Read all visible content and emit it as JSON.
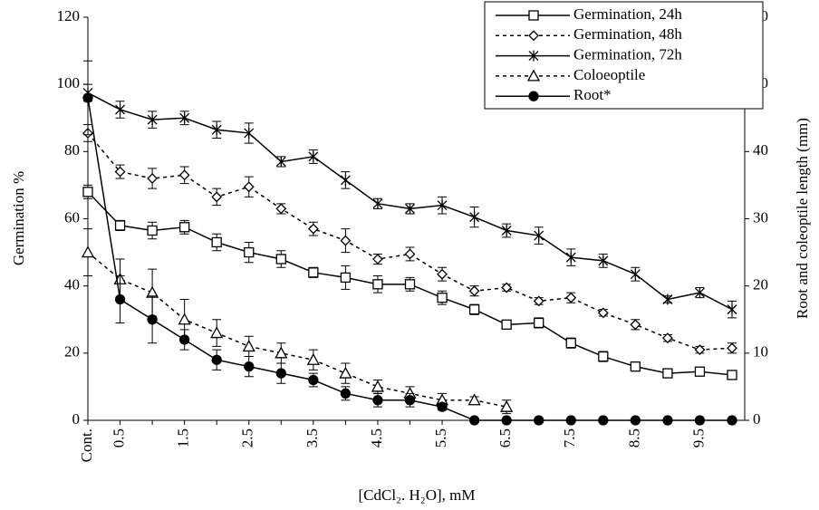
{
  "chart_data": {
    "type": "line",
    "x_label": "[CdCl₂. H₂O], mM",
    "y_label": "Germination %",
    "y2_label": "Root and coleoptile length (mm)",
    "categories": [
      "Cont.",
      "0.5",
      null,
      "1.5",
      null,
      "2.5",
      null,
      "3.5",
      null,
      "4.5",
      null,
      "5.5",
      null,
      "6.5",
      null,
      "7.5",
      null,
      "8.5",
      null,
      "9.5",
      null
    ],
    "ylim": [
      0,
      120
    ],
    "yticks": [
      0,
      20,
      40,
      60,
      80,
      100,
      120
    ],
    "y2lim": [
      0,
      60
    ],
    "y2ticks": [
      0,
      10,
      20,
      30,
      40,
      50,
      60
    ],
    "legend": "upper right",
    "series": [
      {
        "name": "Germination, 24h",
        "color": "#000000",
        "dash": false,
        "marker": "square",
        "values": [
          68,
          58,
          56.5,
          57.5,
          53,
          50,
          48,
          44,
          42.5,
          40.5,
          40.5,
          36.5,
          33,
          28.5,
          29,
          23,
          19,
          16,
          14,
          14.5,
          13.5
        ],
        "errors": [
          2,
          1.5,
          2.5,
          2,
          2.5,
          3,
          2.5,
          1.5,
          3.5,
          2.5,
          2,
          2,
          1.5,
          1,
          1.5,
          1.5,
          1.5,
          1,
          1,
          1,
          1
        ]
      },
      {
        "name": "Germination, 48h",
        "color": "#000000",
        "dash": true,
        "marker": "diamond",
        "values": [
          85.5,
          74,
          72,
          73,
          66.5,
          69.5,
          63,
          57,
          53.5,
          48,
          49.5,
          43.5,
          38.5,
          39.5,
          35.5,
          36.5,
          32,
          28.5,
          24.5,
          21,
          21.5
        ],
        "errors": [
          2.5,
          2,
          3,
          2.5,
          2.5,
          3,
          1.5,
          2,
          3.5,
          1.5,
          2,
          2,
          1.5,
          1,
          1,
          1.5,
          1,
          1.5,
          1,
          1,
          1.5
        ]
      },
      {
        "name": "Germination, 72h",
        "color": "#000000",
        "dash": false,
        "marker": "asterisk",
        "values": [
          97.5,
          92.5,
          89.5,
          90,
          86.5,
          85.5,
          77,
          78.5,
          71.5,
          64.5,
          63,
          64,
          60.5,
          56.5,
          55,
          48.5,
          47.5,
          43.5,
          36,
          38,
          33
        ],
        "errors": [
          2.5,
          2.5,
          2.5,
          2,
          2.5,
          3,
          1.5,
          2,
          2.5,
          1.5,
          1.5,
          2.5,
          3,
          2,
          2.5,
          2.5,
          2,
          2,
          1,
          1.5,
          2.5
        ]
      },
      {
        "name": "Coloeoptile",
        "color": "#000000",
        "dash": true,
        "marker": "triangle",
        "axis": "y2",
        "values": [
          25,
          21,
          19,
          15,
          13,
          11,
          10,
          9,
          7,
          5,
          4,
          3,
          3,
          2,
          null,
          null,
          null,
          null,
          null,
          null,
          null
        ],
        "errors": [
          3.5,
          3,
          3.5,
          3,
          2,
          1.5,
          1.5,
          1.5,
          1.5,
          1,
          1,
          1,
          0.5,
          1,
          null,
          null,
          null,
          null,
          null,
          null,
          null
        ]
      },
      {
        "name": "Root*",
        "color": "#000000",
        "dash": false,
        "marker": "circle",
        "axis": "y2",
        "values": [
          48,
          18,
          15,
          12,
          9,
          8,
          7,
          6,
          4,
          3,
          3,
          2,
          0,
          0,
          0,
          0,
          0,
          0,
          0,
          0,
          0
        ],
        "errors": [
          5.5,
          3.5,
          3.5,
          1.5,
          1.5,
          1.5,
          1.5,
          1,
          1,
          1,
          1,
          0.5,
          0,
          0,
          0,
          0,
          0,
          0,
          0,
          0,
          0
        ]
      }
    ]
  }
}
